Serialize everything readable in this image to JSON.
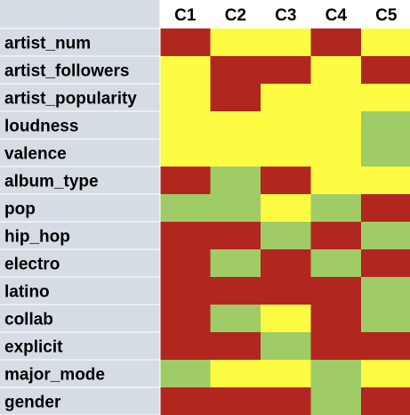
{
  "chart_data": {
    "type": "heatmap",
    "columns": [
      "C1",
      "C2",
      "C3",
      "C4",
      "C5"
    ],
    "rows": [
      "artist_num",
      "artist_followers",
      "artist_popularity",
      "loudness",
      "valence",
      "album_type",
      "pop",
      "hip_hop",
      "electro",
      "latino",
      "collab",
      "explicit",
      "major_mode",
      "gender"
    ],
    "values": [
      [
        "red",
        "yellow",
        "yellow",
        "red",
        "yellow"
      ],
      [
        "yellow",
        "red",
        "red",
        "yellow",
        "red"
      ],
      [
        "yellow",
        "red",
        "yellow",
        "yellow",
        "yellow"
      ],
      [
        "yellow",
        "yellow",
        "yellow",
        "yellow",
        "green"
      ],
      [
        "yellow",
        "yellow",
        "yellow",
        "yellow",
        "green"
      ],
      [
        "red",
        "green",
        "red",
        "yellow",
        "yellow"
      ],
      [
        "green",
        "green",
        "yellow",
        "green",
        "red"
      ],
      [
        "red",
        "red",
        "green",
        "red",
        "green"
      ],
      [
        "red",
        "green",
        "red",
        "green",
        "red"
      ],
      [
        "red",
        "red",
        "red",
        "red",
        "green"
      ],
      [
        "red",
        "green",
        "yellow",
        "red",
        "green"
      ],
      [
        "red",
        "red",
        "green",
        "red",
        "red"
      ],
      [
        "green",
        "yellow",
        "yellow",
        "green",
        "yellow"
      ],
      [
        "red",
        "red",
        "red",
        "green",
        "red"
      ]
    ],
    "colors": {
      "red": "#b22620",
      "yellow": "#fdfc43",
      "green": "#9fcc66",
      "label_background": "#d6dce4"
    },
    "title": "",
    "xlabel": "",
    "ylabel": ""
  }
}
